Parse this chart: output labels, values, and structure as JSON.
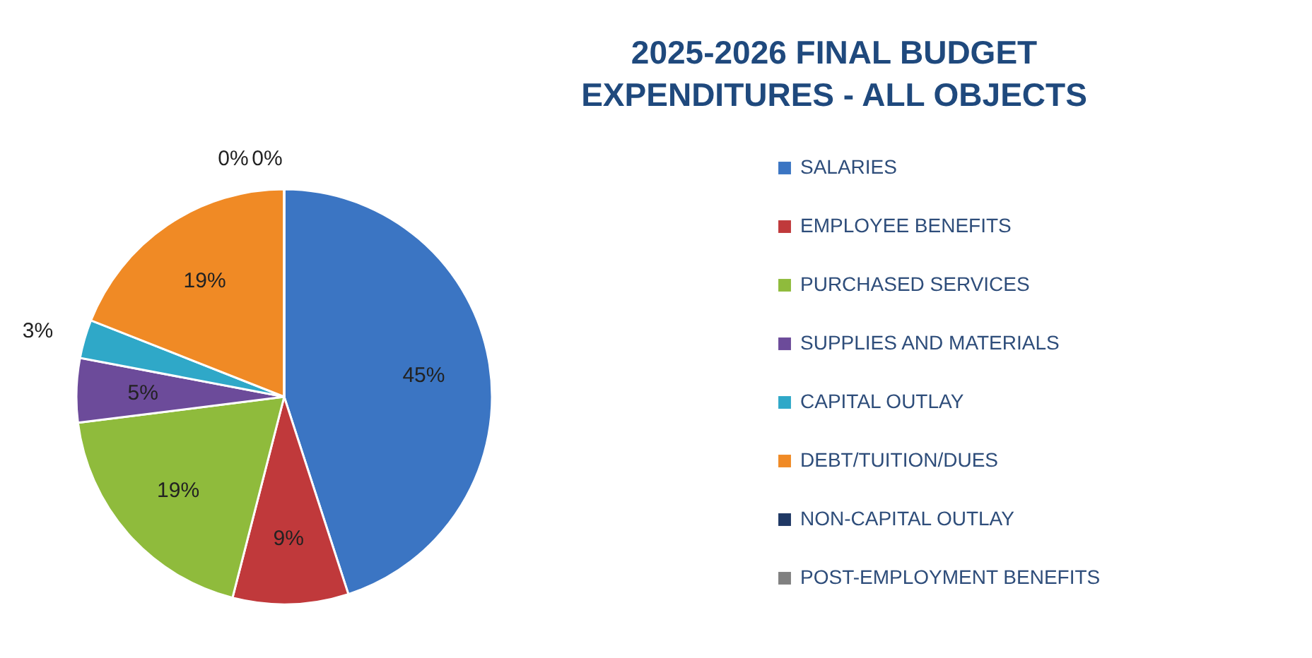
{
  "chart_data": {
    "type": "pie",
    "title": "2025-2026 FINAL BUDGET EXPENDITURES - ALL OBJECTS",
    "categories": [
      "SALARIES",
      "EMPLOYEE BENEFITS",
      "PURCHASED SERVICES",
      "SUPPLIES AND MATERIALS",
      "CAPITAL OUTLAY",
      "DEBT/TUITION/DUES",
      "NON-CAPITAL OUTLAY",
      "POST-EMPLOYMENT BENEFITS"
    ],
    "values": [
      45,
      9,
      19,
      5,
      3,
      19,
      0,
      0
    ],
    "value_labels": [
      "45%",
      "9%",
      "19%",
      "5%",
      "3%",
      "19%",
      "0%",
      "0%"
    ],
    "colors": [
      "#3b75c3",
      "#c0393b",
      "#8fbb3c",
      "#6c4b9a",
      "#2fa8c8",
      "#f08a25",
      "#1f3864",
      "#808080"
    ],
    "legend": "right"
  }
}
